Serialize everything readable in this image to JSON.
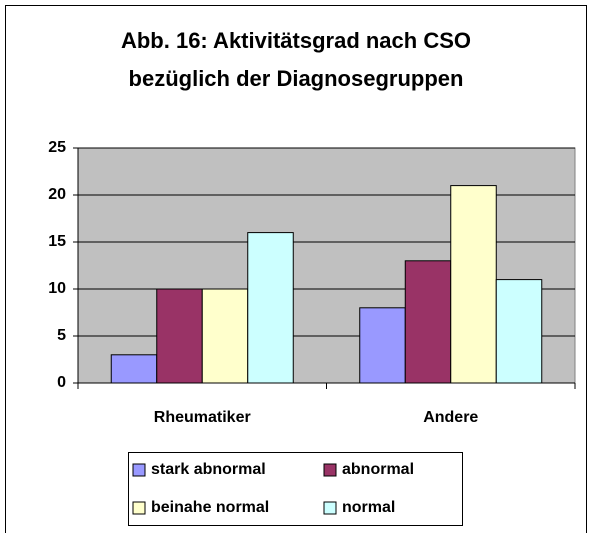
{
  "chart_data": {
    "type": "bar",
    "title": [
      "Abb. 16: Aktivitätsgrad nach CSO",
      "bezüglich der Diagnosegruppen"
    ],
    "categories": [
      "Rheumatiker",
      "Andere"
    ],
    "series": [
      {
        "name": "stark abnormal",
        "color": "#9999ff",
        "values": [
          3,
          8
        ]
      },
      {
        "name": "abnormal",
        "color": "#993366",
        "values": [
          10,
          13
        ]
      },
      {
        "name": "beinahe normal",
        "color": "#ffffcc",
        "values": [
          10,
          21
        ]
      },
      {
        "name": "normal",
        "color": "#ccffff",
        "values": [
          16,
          11
        ]
      }
    ],
    "ylim": [
      0,
      25
    ],
    "yticks": [
      0,
      5,
      10,
      15,
      20,
      25
    ],
    "grid": true,
    "plot_background": "#c0c0c0"
  }
}
